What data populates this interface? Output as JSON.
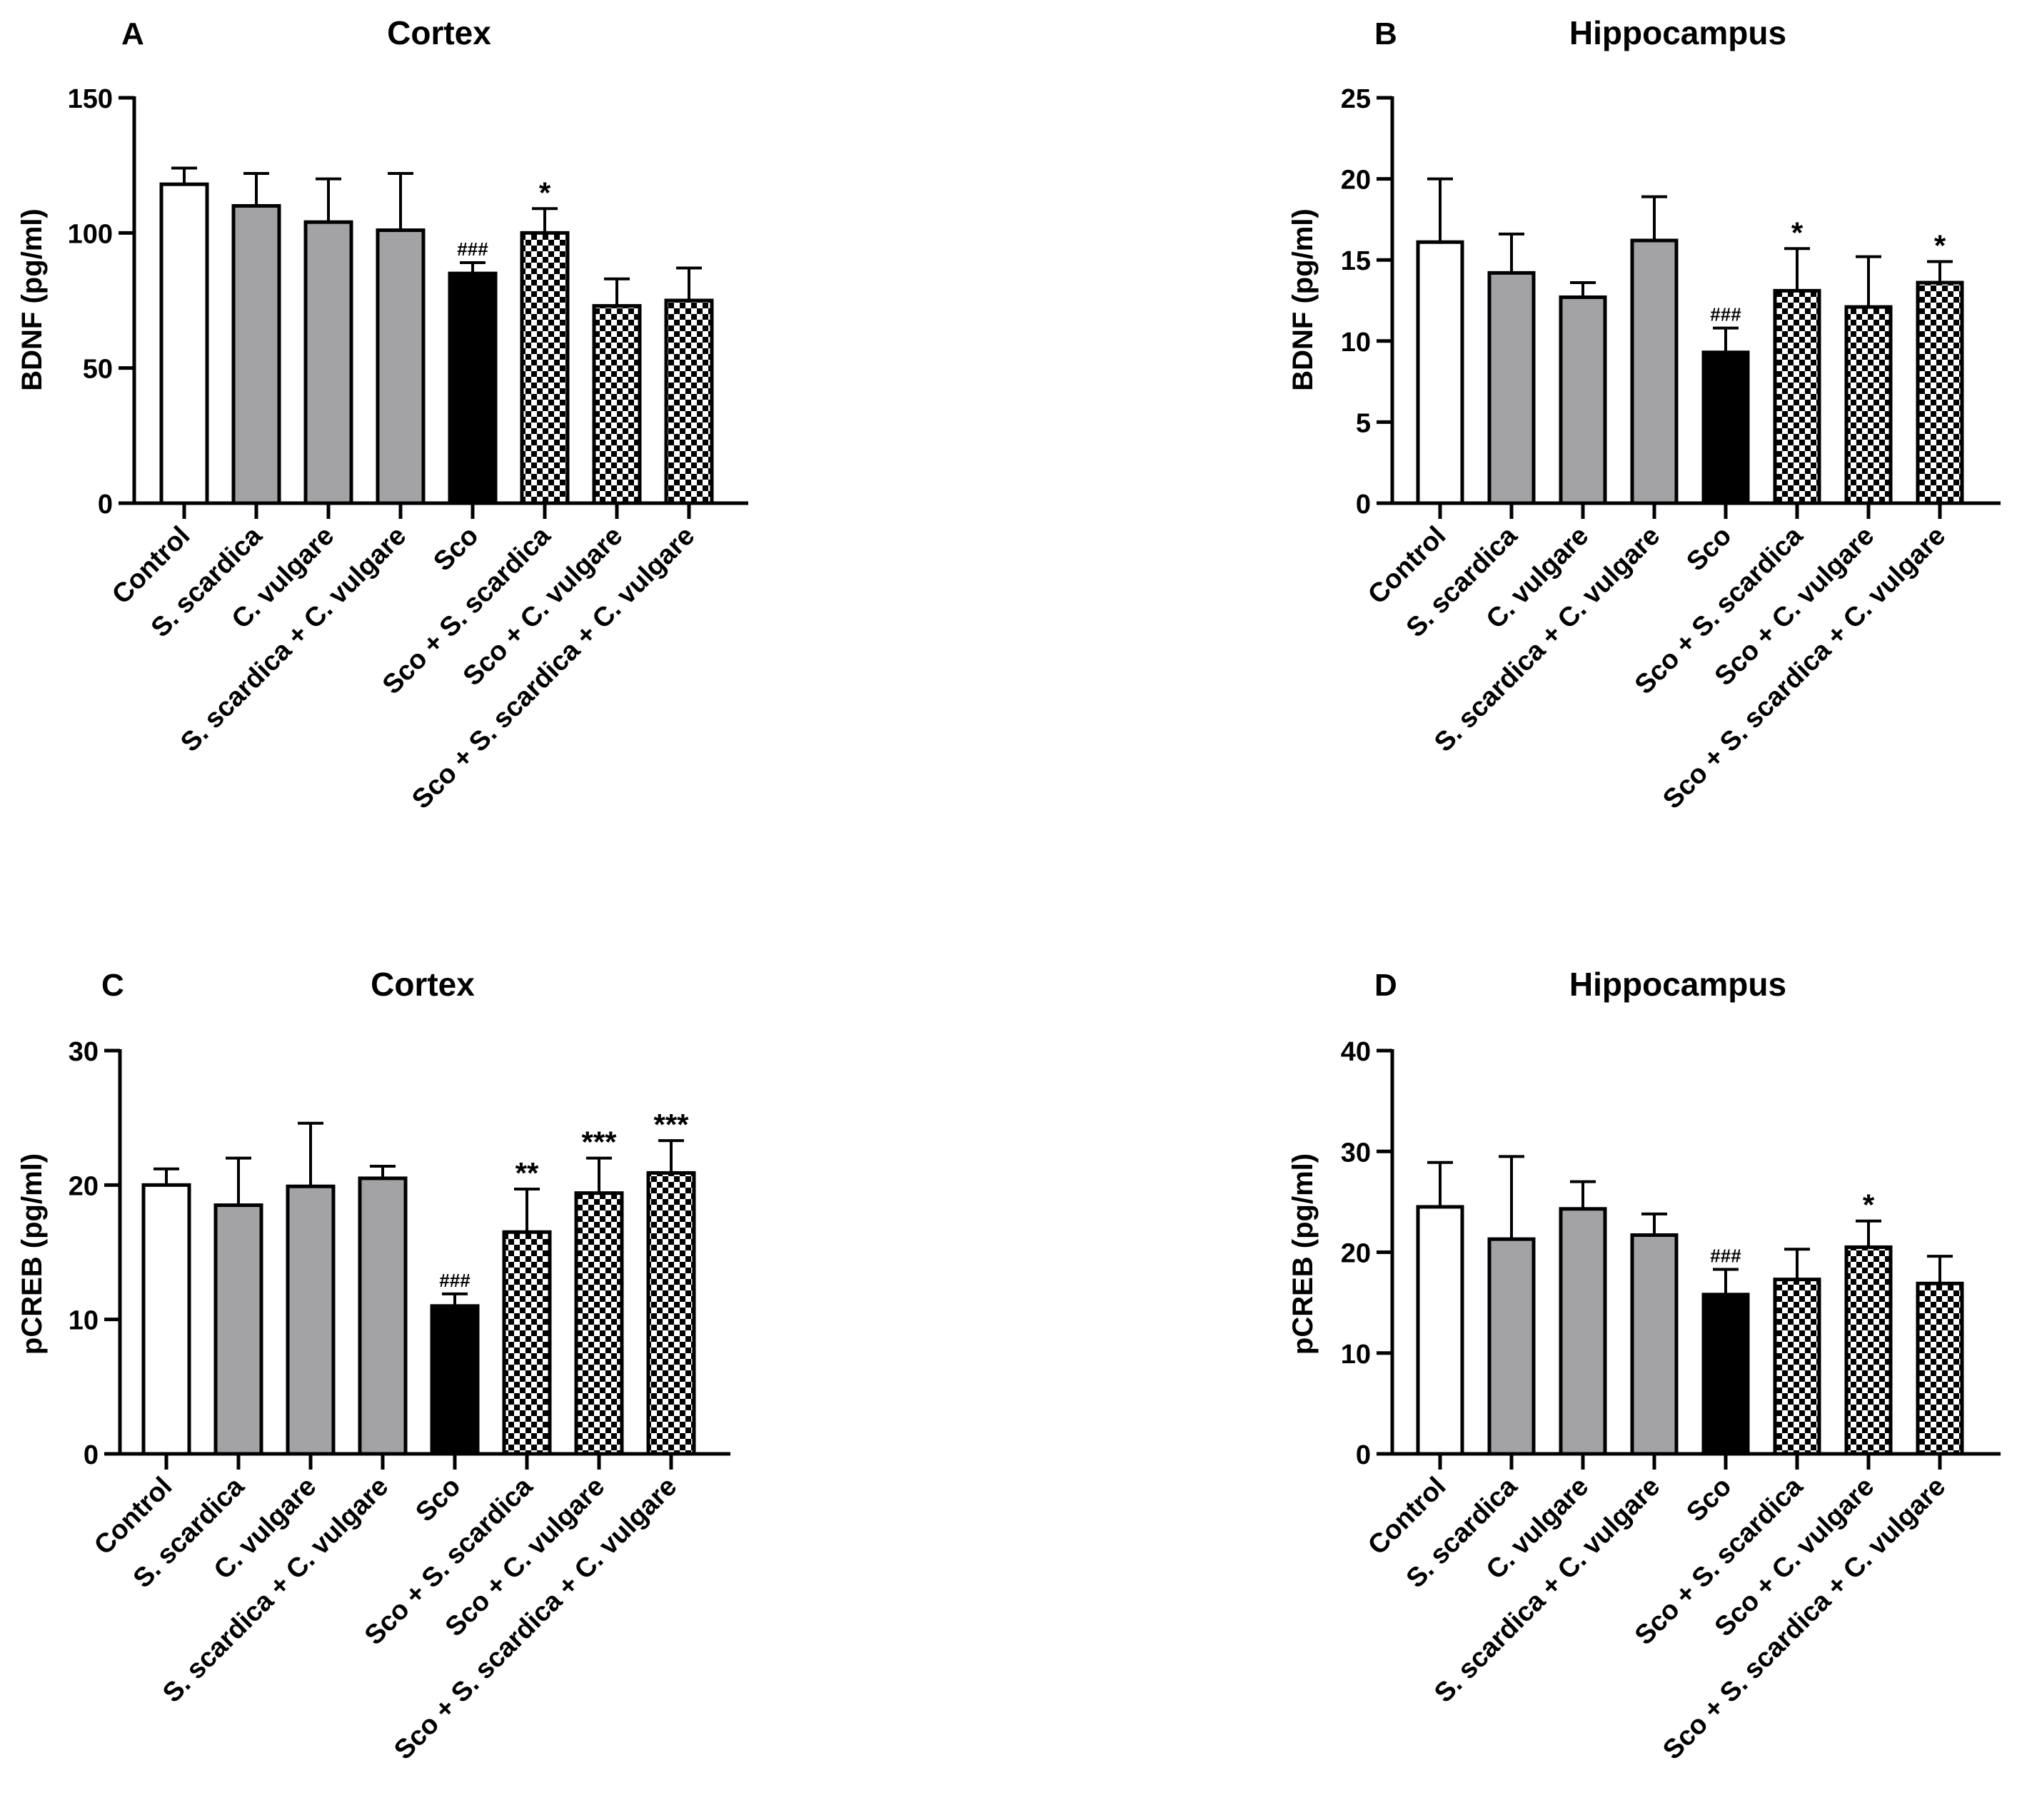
{
  "colors": {
    "white": "#ffffff",
    "gray": "#a3a3a6",
    "black": "#000000",
    "checker_dark": "#000000",
    "checker_light": "#ffffff"
  },
  "chart_data": [
    {
      "type": "bar",
      "panel_letter": "A",
      "title": "Cortex",
      "ylabel": "BDNF (pg/ml)",
      "xlabel": "",
      "ylim": [
        0,
        150
      ],
      "yticks": [
        0,
        50,
        100,
        150
      ],
      "categories": [
        "Control",
        "S. scardica",
        "C. vulgare",
        "S. scardica + C. vulgare",
        "Sco",
        "Sco + S. scardica",
        "Sco + C. vulgare",
        "Sco + S. scardica + C. vulgare"
      ],
      "fills": [
        "white",
        "gray",
        "gray",
        "gray",
        "black",
        "checker",
        "checker",
        "checker"
      ],
      "values": [
        118,
        110,
        104,
        101,
        85,
        100,
        73,
        75
      ],
      "errors": [
        6,
        12,
        16,
        21,
        4,
        9,
        10,
        12
      ],
      "annotations": [
        "",
        "",
        "",
        "",
        "###",
        "*",
        "",
        ""
      ]
    },
    {
      "type": "bar",
      "panel_letter": "B",
      "title": "Hippocampus",
      "ylabel": "BDNF (pg/ml)",
      "xlabel": "",
      "ylim": [
        0,
        25
      ],
      "yticks": [
        0,
        5,
        10,
        15,
        20,
        25
      ],
      "categories": [
        "Control",
        "S. scardica",
        "C. vulgare",
        "S. scardica + C. vulgare",
        "Sco",
        "Sco + S. scardica",
        "Sco + C. vulgare",
        "Sco + S. scardica + C. vulgare"
      ],
      "fills": [
        "white",
        "gray",
        "gray",
        "gray",
        "black",
        "checker",
        "checker",
        "checker"
      ],
      "values": [
        16.1,
        14.2,
        12.7,
        16.2,
        9.3,
        13.1,
        12.1,
        13.6
      ],
      "errors": [
        3.9,
        2.4,
        0.9,
        2.7,
        1.5,
        2.6,
        3.1,
        1.3
      ],
      "annotations": [
        "",
        "",
        "",
        "",
        "###",
        "*",
        "",
        "*"
      ]
    },
    {
      "type": "bar",
      "panel_letter": "C",
      "title": "Cortex",
      "ylabel": "pCREB (pg/ml)",
      "xlabel": "",
      "ylim": [
        0,
        30
      ],
      "yticks": [
        0,
        10,
        20,
        30
      ],
      "categories": [
        "Control",
        "S. scardica",
        "C. vulgare",
        "S. scardica + C. vulgare",
        "Sco",
        "Sco + S. scardica",
        "Sco + C. vulgare",
        "Sco + S. scardica + C. vulgare"
      ],
      "fills": [
        "white",
        "gray",
        "gray",
        "gray",
        "black",
        "checker",
        "checker",
        "checker"
      ],
      "values": [
        20.0,
        18.5,
        19.9,
        20.5,
        11.0,
        16.5,
        19.4,
        20.9
      ],
      "errors": [
        1.2,
        3.5,
        4.7,
        0.9,
        0.9,
        3.2,
        2.6,
        2.4
      ],
      "annotations": [
        "",
        "",
        "",
        "",
        "###",
        "**",
        "***",
        "***"
      ]
    },
    {
      "type": "bar",
      "panel_letter": "D",
      "title": "Hippocampus",
      "ylabel": "pCREB (pg/ml)",
      "xlabel": "",
      "ylim": [
        0,
        40
      ],
      "yticks": [
        0,
        10,
        20,
        30,
        40
      ],
      "categories": [
        "Control",
        "S. scardica",
        "C. vulgare",
        "S. scardica + C. vulgare",
        "Sco",
        "Sco + S. scardica",
        "Sco + C. vulgare",
        "Sco + S. scardica + C. vulgare"
      ],
      "fills": [
        "white",
        "gray",
        "gray",
        "gray",
        "black",
        "checker",
        "checker",
        "checker"
      ],
      "values": [
        24.5,
        21.3,
        24.3,
        21.7,
        15.8,
        17.3,
        20.5,
        16.9
      ],
      "errors": [
        4.4,
        8.2,
        2.7,
        2.1,
        2.5,
        3.0,
        2.6,
        2.7
      ],
      "annotations": [
        "",
        "",
        "",
        "",
        "###",
        "",
        "*",
        ""
      ]
    }
  ]
}
